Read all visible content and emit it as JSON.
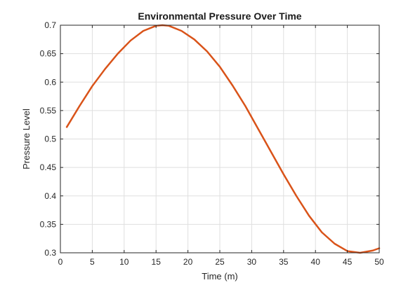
{
  "chart_data": {
    "type": "line",
    "title": "Environmental Pressure Over Time",
    "xlabel": "Time (m)",
    "ylabel": "Pressure Level",
    "xlim": [
      0,
      50
    ],
    "ylim": [
      0.3,
      0.7
    ],
    "xticks": [
      0,
      5,
      10,
      15,
      20,
      25,
      30,
      35,
      40,
      45,
      50
    ],
    "yticks": [
      0.3,
      0.35,
      0.4,
      0.45,
      0.5,
      0.55,
      0.6,
      0.65,
      0.7
    ],
    "grid": true,
    "series": [
      {
        "color": "#d95319",
        "x": [
          1,
          3,
          5,
          7,
          9,
          11,
          13,
          15,
          16,
          17,
          19,
          21,
          23,
          25,
          27,
          29,
          31,
          33,
          35,
          37,
          39,
          41,
          43,
          45,
          47,
          49,
          50
        ],
        "y": [
          0.521,
          0.558,
          0.593,
          0.623,
          0.65,
          0.673,
          0.69,
          0.699,
          0.7,
          0.699,
          0.69,
          0.675,
          0.654,
          0.627,
          0.594,
          0.558,
          0.518,
          0.478,
          0.438,
          0.4,
          0.365,
          0.336,
          0.316,
          0.303,
          0.3,
          0.304,
          0.308
        ]
      }
    ]
  }
}
